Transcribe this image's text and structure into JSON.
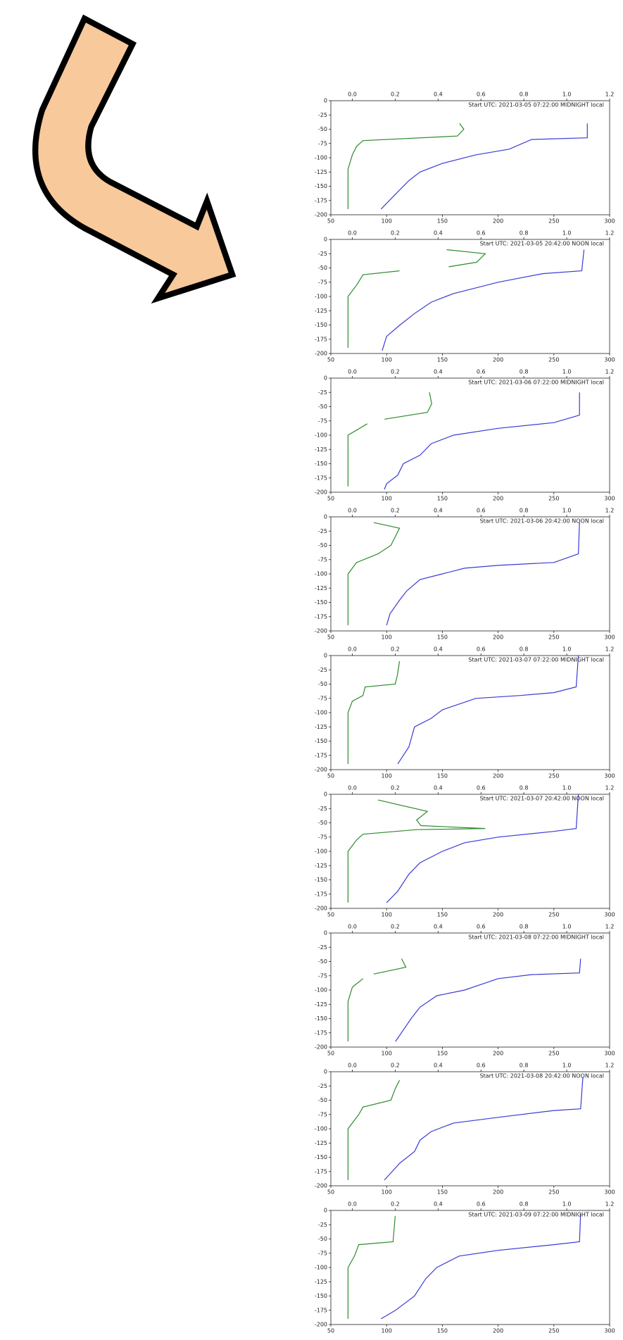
{
  "chart_data": [
    {
      "type": "line",
      "title": "Start UTC: 2021-03-05 07:22:00 MIDNIGHT local",
      "xlim": [
        50,
        300
      ],
      "xticks": [
        50,
        100,
        150,
        200,
        250,
        300
      ],
      "x2lim": [
        -0.1,
        1.2
      ],
      "x2ticks": [
        {
          "value": 0,
          "label": "0.0"
        },
        0.2,
        0.4,
        0.6,
        0.8,
        {
          "value": 1,
          "label": "1.0"
        },
        1.2
      ],
      "ylim": [
        -200,
        0
      ],
      "yticks": [
        0,
        -25,
        -50,
        -75,
        -100,
        -125,
        -150,
        -175,
        -200
      ],
      "series": [
        {
          "color": "#3b3bd6",
          "x": [
            280,
            280,
            230,
            210,
            180,
            150,
            130,
            120,
            110,
            100,
            95
          ],
          "values": [
            -40,
            -65,
            -68,
            -85,
            -95,
            -110,
            -125,
            -140,
            -160,
            -180,
            -190
          ]
        },
        {
          "color": "#2e8b2e",
          "axis": "x2",
          "x": [
            0.5,
            0.52,
            0.49,
            0.05,
            0.02,
            0,
            -0.02,
            -0.02,
            -0.02
          ],
          "values": [
            -40,
            -50,
            -62,
            -70,
            -80,
            -95,
            -120,
            -160,
            -190
          ]
        }
      ]
    },
    {
      "type": "line",
      "title": "Start UTC: 2021-03-05 20:42:00 NOON local",
      "xlim": [
        50,
        300
      ],
      "xticks": [
        50,
        100,
        150,
        200,
        250,
        300
      ],
      "x2lim": [
        -0.1,
        1.2
      ],
      "x2ticks": [
        {
          "value": 0,
          "label": "0.0"
        },
        0.2,
        0.4,
        0.6,
        0.8,
        {
          "value": 1,
          "label": "1.0"
        },
        1.2
      ],
      "ylim": [
        -200,
        0
      ],
      "yticks": [
        0,
        -25,
        -50,
        -75,
        -100,
        -125,
        -150,
        -175,
        -200
      ],
      "series": [
        {
          "color": "#3b3bd6",
          "x": [
            277,
            275,
            240,
            200,
            160,
            140,
            125,
            112,
            100,
            96
          ],
          "values": [
            -18,
            -55,
            -60,
            -75,
            -95,
            -110,
            -130,
            -150,
            -170,
            -195
          ]
        },
        {
          "color": "#2e8b2e",
          "axis": "x2",
          "x": [
            0.44,
            0.62,
            0.58,
            0.45,
            null,
            0.22,
            0.05,
            0.02,
            -0.02,
            -0.02
          ],
          "values": [
            -18,
            -25,
            -40,
            -48,
            null,
            -55,
            -62,
            -80,
            -100,
            -190
          ]
        }
      ]
    },
    {
      "type": "line",
      "title": "Start UTC: 2021-03-06 07:22:00 MIDNIGHT local",
      "xlim": [
        50,
        300
      ],
      "xticks": [
        50,
        100,
        150,
        200,
        250,
        300
      ],
      "x2lim": [
        -0.1,
        1.2
      ],
      "x2ticks": [
        {
          "value": 0,
          "label": "0.0"
        },
        0.2,
        0.4,
        0.6,
        0.8,
        {
          "value": 1,
          "label": "1.0"
        },
        1.2
      ],
      "ylim": [
        -200,
        0
      ],
      "yticks": [
        0,
        -25,
        -50,
        -75,
        -100,
        -125,
        -150,
        -175,
        -200
      ],
      "series": [
        {
          "color": "#3b3bd6",
          "x": [
            273,
            273,
            250,
            200,
            160,
            140,
            130,
            115,
            110,
            100,
            98
          ],
          "values": [
            -25,
            -65,
            -78,
            -88,
            -100,
            -115,
            -135,
            -150,
            -170,
            -185,
            -195
          ]
        },
        {
          "color": "#2e8b2e",
          "axis": "x2",
          "x": [
            0.36,
            0.37,
            0.35,
            0.15,
            null,
            0.07,
            -0.02,
            -0.02
          ],
          "values": [
            -25,
            -45,
            -60,
            -72,
            null,
            -80,
            -100,
            -190
          ]
        }
      ]
    },
    {
      "type": "line",
      "title": "Start UTC: 2021-03-06 20:42:00 NOON local",
      "xlim": [
        50,
        300
      ],
      "xticks": [
        50,
        100,
        150,
        200,
        250,
        300
      ],
      "x2lim": [
        -0.1,
        1.2
      ],
      "x2ticks": [
        {
          "value": 0,
          "label": "0.0"
        },
        0.2,
        0.4,
        0.6,
        0.8,
        {
          "value": 1,
          "label": "1.0"
        },
        1.2
      ],
      "ylim": [
        -200,
        0
      ],
      "yticks": [
        0,
        -25,
        -50,
        -75,
        -100,
        -125,
        -150,
        -175,
        -200
      ],
      "series": [
        {
          "color": "#3b3bd6",
          "x": [
            273,
            272,
            250,
            200,
            170,
            150,
            130,
            118,
            112,
            103,
            100
          ],
          "values": [
            -10,
            -65,
            -80,
            -85,
            -90,
            -100,
            -110,
            -130,
            -145,
            -170,
            -190
          ]
        },
        {
          "color": "#2e8b2e",
          "axis": "x2",
          "x": [
            0.1,
            0.22,
            0.2,
            0.18,
            0.12,
            0.02,
            -0.02,
            -0.02
          ],
          "values": [
            -10,
            -20,
            -35,
            -50,
            -65,
            -80,
            -100,
            -190
          ]
        }
      ]
    },
    {
      "type": "line",
      "title": "Start UTC: 2021-03-07 07:22:00 MIDNIGHT local",
      "xlim": [
        50,
        300
      ],
      "xticks": [
        50,
        100,
        150,
        200,
        250,
        300
      ],
      "x2lim": [
        -0.1,
        1.2
      ],
      "x2ticks": [
        {
          "value": 0,
          "label": "0.0"
        },
        0.2,
        0.4,
        0.6,
        0.8,
        {
          "value": 1,
          "label": "1.0"
        },
        1.2
      ],
      "ylim": [
        -200,
        0
      ],
      "yticks": [
        0,
        -25,
        -50,
        -75,
        -100,
        -125,
        -150,
        -175,
        -200
      ],
      "series": [
        {
          "color": "#3b3bd6",
          "x": [
            272,
            270,
            250,
            220,
            180,
            150,
            140,
            125,
            120,
            110
          ],
          "values": [
            0,
            -55,
            -65,
            -70,
            -75,
            -95,
            -110,
            -125,
            -160,
            -190
          ]
        },
        {
          "color": "#2e8b2e",
          "axis": "x2",
          "x": [
            0.22,
            0.21,
            0.2,
            0.06,
            0.05,
            0,
            -0.02,
            -0.02
          ],
          "values": [
            -10,
            -35,
            -50,
            -55,
            -70,
            -80,
            -100,
            -190
          ]
        }
      ]
    },
    {
      "type": "line",
      "title": "Start UTC: 2021-03-07 20:42:00 NOON local",
      "xlim": [
        50,
        300
      ],
      "xticks": [
        50,
        100,
        150,
        200,
        250,
        300
      ],
      "x2lim": [
        -0.1,
        1.2
      ],
      "x2ticks": [
        {
          "value": 0,
          "label": "0.0"
        },
        0.2,
        0.4,
        0.6,
        0.8,
        {
          "value": 1,
          "label": "1.0"
        },
        1.2
      ],
      "ylim": [
        -200,
        0
      ],
      "yticks": [
        0,
        -25,
        -50,
        -75,
        -100,
        -125,
        -150,
        -175,
        -200
      ],
      "series": [
        {
          "color": "#3b3bd6",
          "x": [
            272,
            270,
            250,
            200,
            170,
            150,
            130,
            120,
            110,
            100
          ],
          "values": [
            0,
            -60,
            -65,
            -75,
            -85,
            -100,
            -120,
            -140,
            -170,
            -190
          ]
        },
        {
          "color": "#2e8b2e",
          "axis": "x2",
          "x": [
            0.12,
            0.35,
            0.3,
            0.32,
            0.62,
            0.3,
            0.05,
            0.02,
            -0.02,
            -0.02
          ],
          "values": [
            -10,
            -30,
            -45,
            -55,
            -60,
            -62,
            -70,
            -80,
            -100,
            -190
          ]
        }
      ]
    },
    {
      "type": "line",
      "title": "Start UTC: 2021-03-08 07:22:00 MIDNIGHT local",
      "xlim": [
        50,
        300
      ],
      "xticks": [
        50,
        100,
        150,
        200,
        250,
        300
      ],
      "x2lim": [
        -0.1,
        1.2
      ],
      "x2ticks": [
        {
          "value": 0,
          "label": "0.0"
        },
        0.2,
        0.4,
        0.6,
        0.8,
        {
          "value": 1,
          "label": "1.0"
        },
        1.2
      ],
      "ylim": [
        -200,
        0
      ],
      "yticks": [
        0,
        -25,
        -50,
        -75,
        -100,
        -125,
        -150,
        -175,
        -200
      ],
      "series": [
        {
          "color": "#3b3bd6",
          "x": [
            274,
            273,
            230,
            200,
            170,
            145,
            130,
            122,
            115,
            108
          ],
          "values": [
            -45,
            -70,
            -73,
            -80,
            -100,
            -110,
            -130,
            -150,
            -170,
            -190
          ]
        },
        {
          "color": "#2e8b2e",
          "axis": "x2",
          "x": [
            0.23,
            0.25,
            0.1,
            null,
            0.05,
            0,
            -0.02,
            -0.02
          ],
          "values": [
            -45,
            -60,
            -72,
            null,
            -80,
            -95,
            -120,
            -190
          ]
        }
      ]
    },
    {
      "type": "line",
      "title": "Start UTC: 2021-03-08 20:42:00 NOON local",
      "xlim": [
        50,
        300
      ],
      "xticks": [
        50,
        100,
        150,
        200,
        250,
        300
      ],
      "x2lim": [
        -0.1,
        1.2
      ],
      "x2ticks": [
        {
          "value": 0,
          "label": "0.0"
        },
        0.2,
        0.4,
        0.6,
        0.8,
        {
          "value": 1,
          "label": "1.0"
        },
        1.2
      ],
      "ylim": [
        -200,
        0
      ],
      "yticks": [
        0,
        -25,
        -50,
        -75,
        -100,
        -125,
        -150,
        -175,
        -200
      ],
      "series": [
        {
          "color": "#3b3bd6",
          "x": [
            276,
            274,
            250,
            200,
            160,
            140,
            130,
            125,
            112,
            98
          ],
          "values": [
            -10,
            -65,
            -68,
            -80,
            -90,
            -105,
            -120,
            -140,
            -160,
            -190
          ]
        },
        {
          "color": "#2e8b2e",
          "axis": "x2",
          "x": [
            0.22,
            0.2,
            0.18,
            0.05,
            0.03,
            -0.02,
            -0.02
          ],
          "values": [
            -15,
            -30,
            -50,
            -62,
            -75,
            -100,
            -190
          ]
        }
      ]
    },
    {
      "type": "line",
      "title": "Start UTC: 2021-03-09 07:22:00 MIDNIGHT local",
      "xlim": [
        50,
        300
      ],
      "xticks": [
        50,
        100,
        150,
        200,
        250,
        300
      ],
      "x2lim": [
        -0.1,
        1.2
      ],
      "x2ticks": [
        {
          "value": 0,
          "label": "0.0"
        },
        0.2,
        0.4,
        0.6,
        0.8,
        {
          "value": 1,
          "label": "1.0"
        },
        1.2
      ],
      "ylim": [
        -200,
        0
      ],
      "yticks": [
        0,
        -25,
        -50,
        -75,
        -100,
        -125,
        -150,
        -175,
        -200
      ],
      "series": [
        {
          "color": "#3b3bd6",
          "x": [
            274,
            273,
            250,
            200,
            165,
            145,
            135,
            125,
            108,
            95
          ],
          "values": [
            -5,
            -55,
            -60,
            -70,
            -80,
            -100,
            -120,
            -150,
            -175,
            -190
          ]
        },
        {
          "color": "#2e8b2e",
          "axis": "x2",
          "x": [
            0.2,
            0.19,
            0.03,
            0.01,
            -0.02,
            -0.02
          ],
          "values": [
            -10,
            -55,
            -60,
            -80,
            -100,
            -190
          ]
        }
      ]
    }
  ]
}
